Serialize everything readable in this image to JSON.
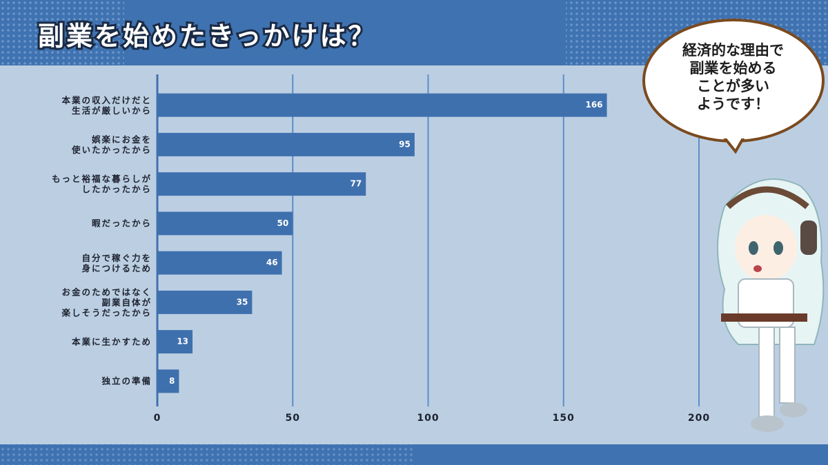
{
  "chart_data": {
    "type": "bar",
    "orientation": "horizontal",
    "title": "副業を始めたきっかけは？",
    "categories": [
      "本業の収入だけだと\n生活が厳しいから",
      "娯楽にお金を\n使いたかったから",
      "もっと裕福な暮らしが\nしたかったから",
      "暇だったから",
      "自分で稼ぐ力を\n身につけるため",
      "お金のためではなく\n副業自体が\n楽しそうだったから",
      "本業に生かすため",
      "独立の準備"
    ],
    "values": [
      166,
      95,
      77,
      50,
      46,
      35,
      13,
      8
    ],
    "color": "#3f70ae",
    "xlim": [
      0,
      200
    ],
    "xticks": [
      0,
      50,
      100,
      150,
      200
    ],
    "grid": true,
    "annotation": "経済的な理由で\n副業を始める\nことが多い\nようです！"
  }
}
